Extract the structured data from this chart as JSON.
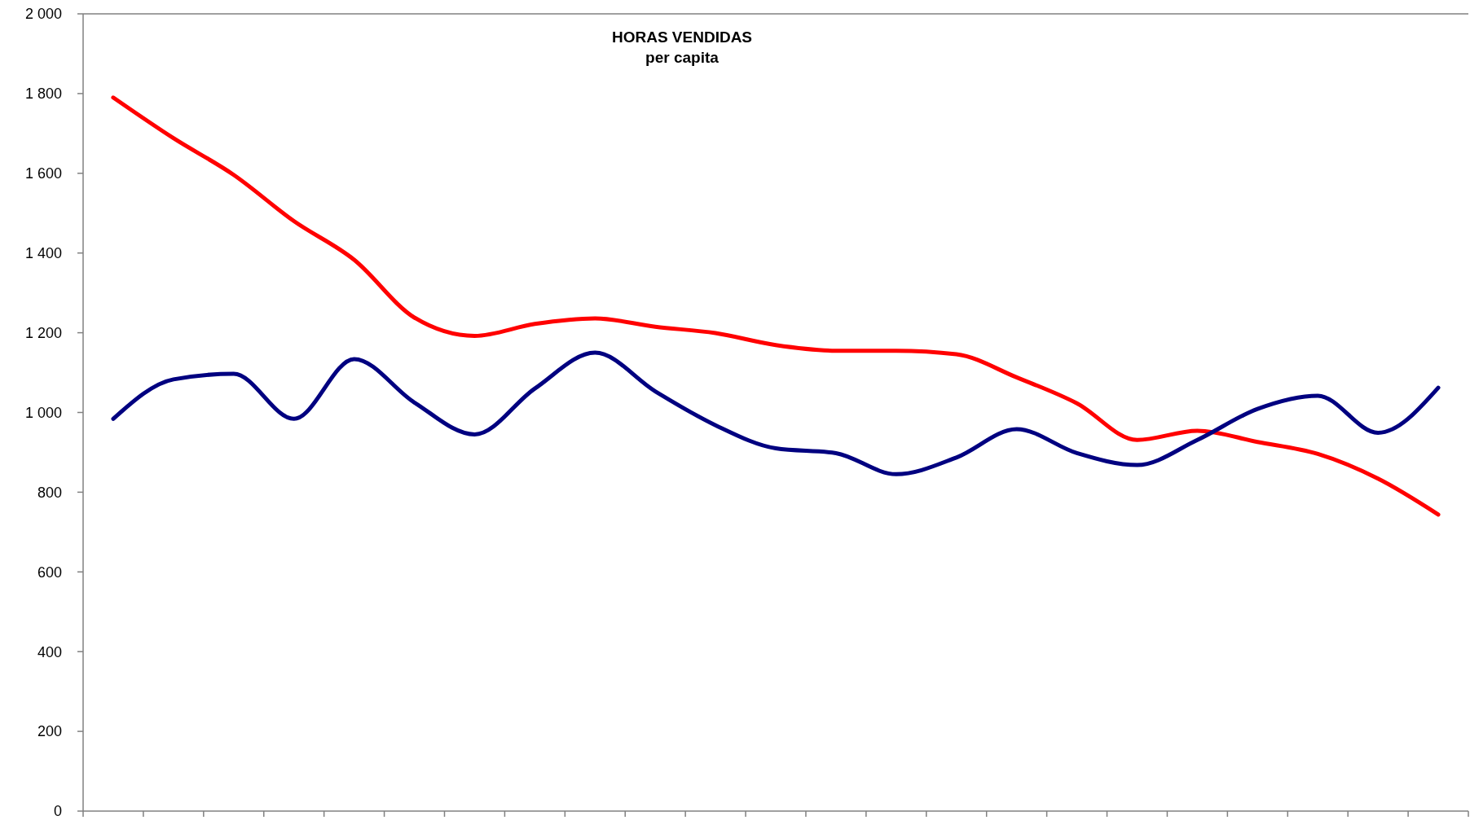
{
  "chart_data": {
    "type": "line",
    "title": "HORAS VENDIDAS",
    "subtitle": "per capita",
    "categories": [
      null,
      null,
      null,
      null,
      null,
      null,
      null,
      null,
      null,
      null,
      null,
      null,
      null,
      null,
      null,
      null,
      null,
      null,
      null,
      null,
      null,
      null,
      null
    ],
    "series": [
      {
        "color": "#ff0000",
        "values": [
          1790,
          1688,
          1596,
          1480,
          1383,
          1238,
          1192,
          1222,
          1236,
          1215,
          1199,
          1169,
          1155,
          1155,
          1146,
          1088,
          1023,
          931,
          954,
          926,
          896,
          834,
          744
        ]
      },
      {
        "color": "#000080",
        "values": [
          984,
          1083,
          1097,
          984,
          1134,
          1025,
          945,
          1060,
          1150,
          1053,
          968,
          910,
          898,
          845,
          887,
          958,
          898,
          868,
          931,
          1009,
          1042,
          949,
          1062
        ]
      }
    ],
    "ylim": [
      0,
      2000
    ],
    "yticks": [
      {
        "value": 0,
        "label": "0"
      },
      {
        "value": 200,
        "label": "200"
      },
      {
        "value": 400,
        "label": "400"
      },
      {
        "value": 600,
        "label": "600"
      },
      {
        "value": 800,
        "label": "800"
      },
      {
        "value": 1000,
        "label": "1 000"
      },
      {
        "value": 1200,
        "label": "1 200"
      },
      {
        "value": 1400,
        "label": "1 400"
      },
      {
        "value": 1600,
        "label": "1 600"
      },
      {
        "value": 1800,
        "label": "1 800"
      },
      {
        "value": 2000,
        "label": "2 000"
      }
    ],
    "grid": false,
    "marker": "none",
    "line_style": "solid"
  }
}
